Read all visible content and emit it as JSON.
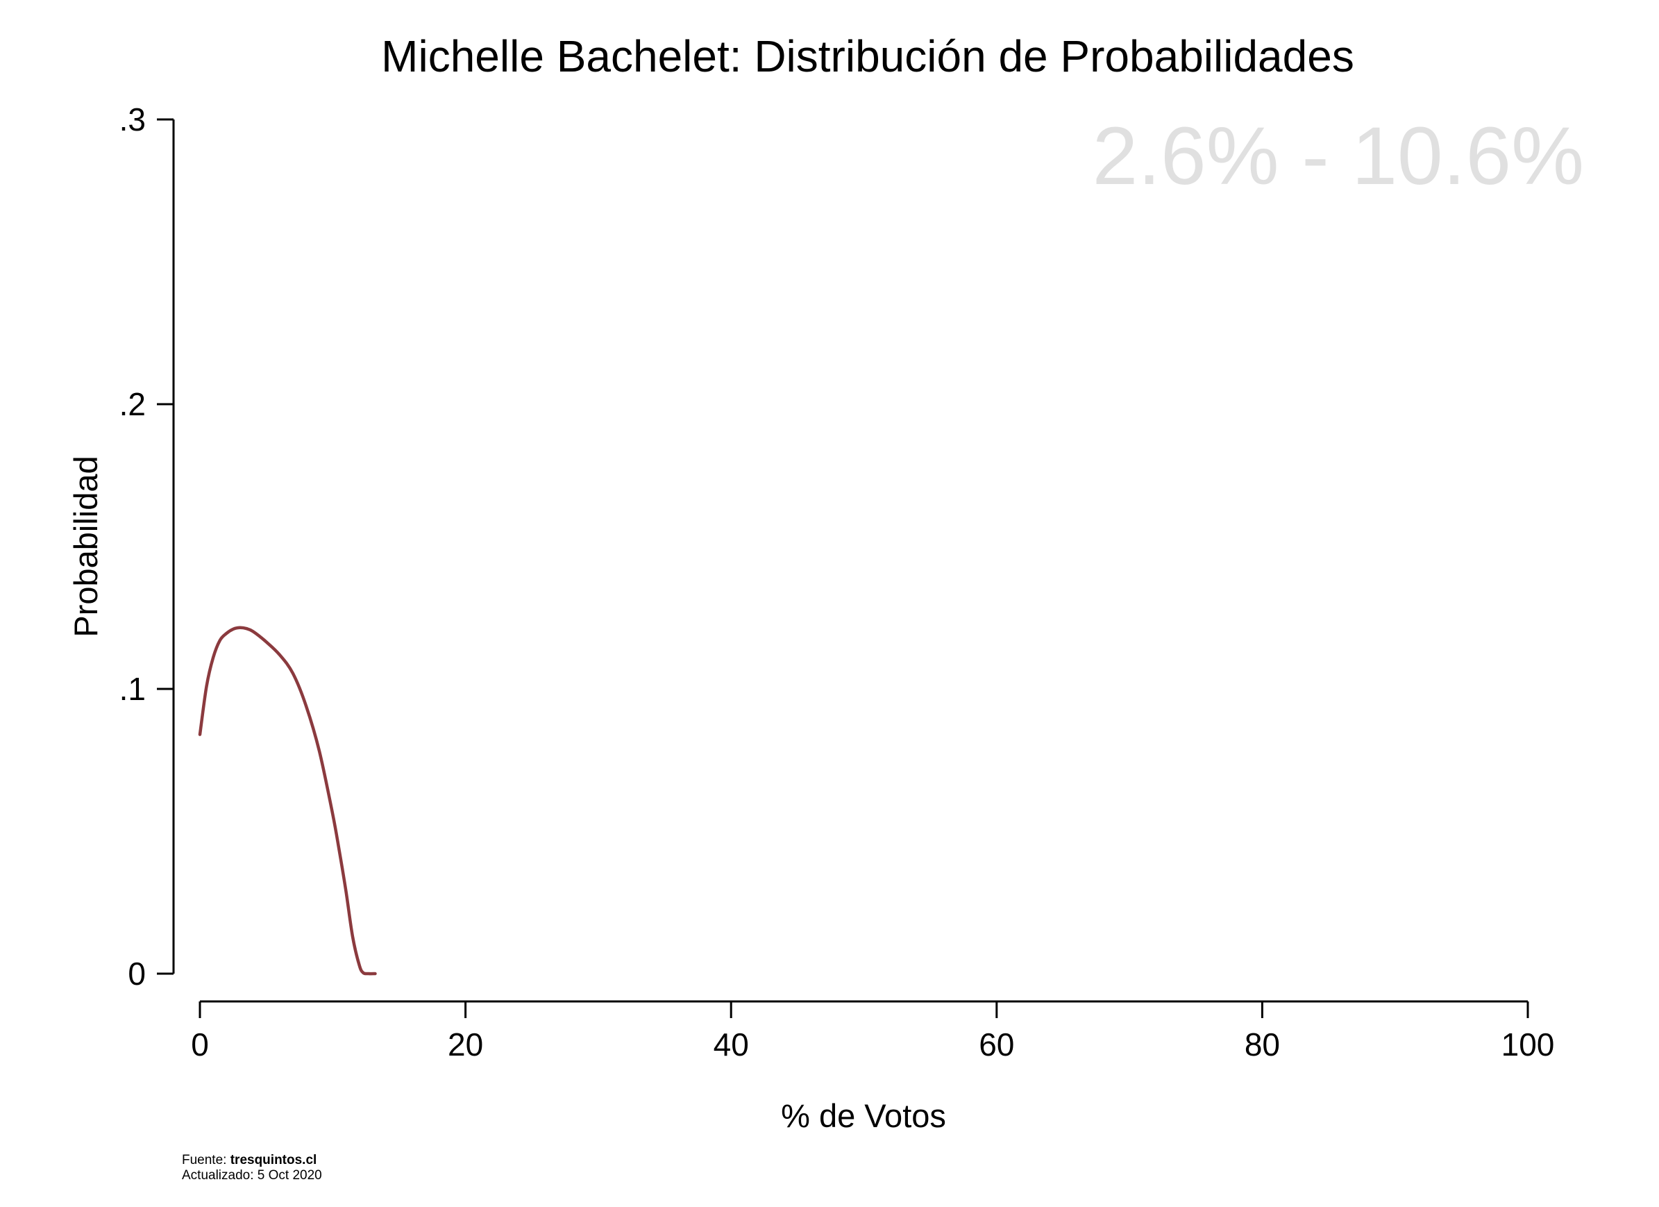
{
  "chart_data": {
    "type": "line",
    "title": "Michelle Bachelet: Distribución de Probabilidades",
    "xlabel": "% de Votos",
    "ylabel": "Probabilidad",
    "xlim": [
      0,
      100
    ],
    "ylim": [
      0,
      0.3
    ],
    "x_ticks": [
      0,
      20,
      40,
      60,
      80,
      100
    ],
    "x_tick_labels": [
      "0",
      "20",
      "40",
      "60",
      "80",
      "100"
    ],
    "y_ticks": [
      0,
      0.1,
      0.2,
      0.3
    ],
    "y_tick_labels": [
      "0",
      ".1",
      ".2",
      ".3"
    ],
    "grid": false,
    "annotation": "2.6% - 10.6%",
    "series": [
      {
        "color": "#8b3a3e",
        "x": [
          0,
          0.5,
          1,
          1.5,
          2,
          2.5,
          3,
          3.5,
          4,
          5,
          6,
          7,
          8,
          9,
          10,
          10.5,
          11,
          11.5,
          12,
          12.3,
          12.7,
          13.2
        ],
        "y": [
          0.084,
          0.101,
          0.111,
          0.117,
          0.1195,
          0.121,
          0.1215,
          0.1212,
          0.1202,
          0.1165,
          0.112,
          0.1055,
          0.094,
          0.078,
          0.056,
          0.043,
          0.029,
          0.013,
          0.003,
          0.0003,
          0,
          0
        ]
      }
    ]
  },
  "footer": {
    "source_label": "Fuente: ",
    "source_value": "tresquintos.cl",
    "updated": "Actualizado: 5 Oct 2020"
  }
}
